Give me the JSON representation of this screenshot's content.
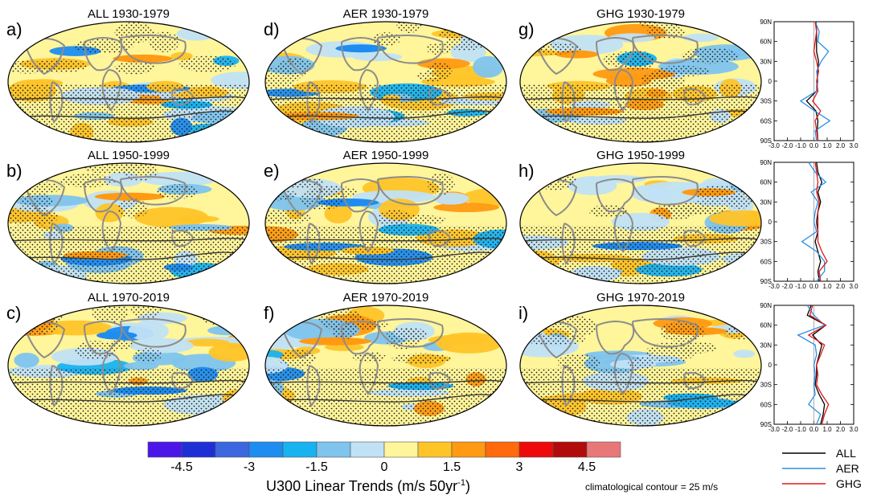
{
  "colors": {
    "land": "#8c8c8c",
    "contour": "#3a3a3a",
    "stipple": "#1a1a1a",
    "ALL": "#000000",
    "AER": "#2b8fe6",
    "GHG": "#e01818"
  },
  "maps": [
    {
      "letter": "a)",
      "title": "ALL 1930-1979",
      "col": 0,
      "row": 0
    },
    {
      "letter": "b)",
      "title": "ALL 1950-1999",
      "col": 0,
      "row": 1
    },
    {
      "letter": "c)",
      "title": "ALL 1970-2019",
      "col": 0,
      "row": 2
    },
    {
      "letter": "d)",
      "title": "AER 1930-1979",
      "col": 1,
      "row": 0
    },
    {
      "letter": "e)",
      "title": "AER 1950-1999",
      "col": 1,
      "row": 1
    },
    {
      "letter": "f)",
      "title": "AER 1970-2019",
      "col": 1,
      "row": 2
    },
    {
      "letter": "g)",
      "title": "GHG 1930-1979",
      "col": 2,
      "row": 0
    },
    {
      "letter": "h)",
      "title": "GHG 1950-1999",
      "col": 2,
      "row": 1
    },
    {
      "letter": "i)",
      "title": "GHG 1970-2019",
      "col": 2,
      "row": 2
    }
  ],
  "chart_data": {
    "type": "line",
    "xticks": [
      "-3.0",
      "-2.0",
      "-1.0",
      "0.0",
      "1.0",
      "2.0",
      "3.0"
    ],
    "xlim": [
      -3,
      3
    ],
    "yticks": [
      "90S",
      "60S",
      "30S",
      "0",
      "30N",
      "60N",
      "90N"
    ],
    "ylim": [
      -90,
      90
    ],
    "lat": [
      -90,
      -75,
      -60,
      -45,
      -30,
      -15,
      0,
      15,
      30,
      45,
      60,
      75,
      90
    ],
    "legend": [
      {
        "name": "ALL"
      },
      {
        "name": "AER"
      },
      {
        "name": "GHG"
      }
    ],
    "panels": [
      {
        "period": "1930-1979",
        "series": [
          {
            "key": "ALL",
            "values": [
              0.3,
              0.25,
              0.3,
              0.15,
              -0.55,
              0.2,
              0.25,
              0.3,
              0.35,
              0.2,
              0.2,
              0.2,
              0.15
            ]
          },
          {
            "key": "AER",
            "values": [
              0.2,
              0.1,
              1.2,
              0.05,
              -1.0,
              0.2,
              0.3,
              0.2,
              0.55,
              1.1,
              0.3,
              0.4,
              0.1
            ]
          },
          {
            "key": "GHG",
            "values": [
              0.3,
              0.2,
              0.1,
              0.5,
              -0.1,
              0.3,
              0.2,
              0.35,
              0.2,
              0.0,
              0.1,
              0.2,
              0.1
            ]
          }
        ]
      },
      {
        "period": "1950-1999",
        "series": [
          {
            "key": "ALL",
            "values": [
              0.4,
              0.3,
              0.5,
              0.3,
              0.1,
              0.3,
              0.2,
              0.3,
              0.5,
              0.3,
              0.6,
              0.3,
              0.2
            ]
          },
          {
            "key": "AER",
            "values": [
              0.2,
              0.8,
              0.8,
              0.2,
              -0.9,
              0.2,
              0.0,
              0.1,
              0.3,
              -0.2,
              0.9,
              0.1,
              -0.4
            ]
          },
          {
            "key": "GHG",
            "values": [
              0.5,
              0.4,
              1.0,
              0.6,
              0.3,
              0.3,
              0.3,
              0.3,
              0.4,
              0.2,
              0.3,
              0.2,
              0.1
            ]
          }
        ]
      },
      {
        "period": "1970-2019",
        "series": [
          {
            "key": "ALL",
            "values": [
              0.5,
              0.7,
              0.8,
              0.4,
              0.1,
              0.2,
              0.2,
              0.4,
              0.6,
              -0.1,
              0.9,
              -0.5,
              -0.2
            ]
          },
          {
            "key": "AER",
            "values": [
              0.2,
              0.5,
              -0.4,
              0.1,
              0.0,
              0.1,
              0.0,
              0.2,
              0.1,
              -1.2,
              0.8,
              0.0,
              -0.5
            ]
          },
          {
            "key": "GHG",
            "values": [
              0.6,
              0.8,
              1.1,
              0.6,
              0.2,
              0.3,
              0.2,
              0.5,
              0.8,
              -0.4,
              0.9,
              -0.3,
              -0.1
            ]
          }
        ]
      }
    ]
  },
  "colorbar": {
    "colors": [
      "#4a17e8",
      "#1f2fd6",
      "#3c66e0",
      "#1e8cf0",
      "#19b2f0",
      "#7ec4ee",
      "#c1e2f5",
      "#fff59a",
      "#ffc428",
      "#ff9a12",
      "#ff6a0c",
      "#ee0a0a",
      "#b20b0b",
      "#e87878"
    ],
    "labels": [
      "-4.5",
      "-3",
      "-1.5",
      "0",
      "1.5",
      "3",
      "4.5"
    ],
    "label": "U300 Linear Trends (m/s 50yr",
    "label_sup": "-1",
    "label_end": ")"
  },
  "note": "climatological contour = 25 m/s"
}
